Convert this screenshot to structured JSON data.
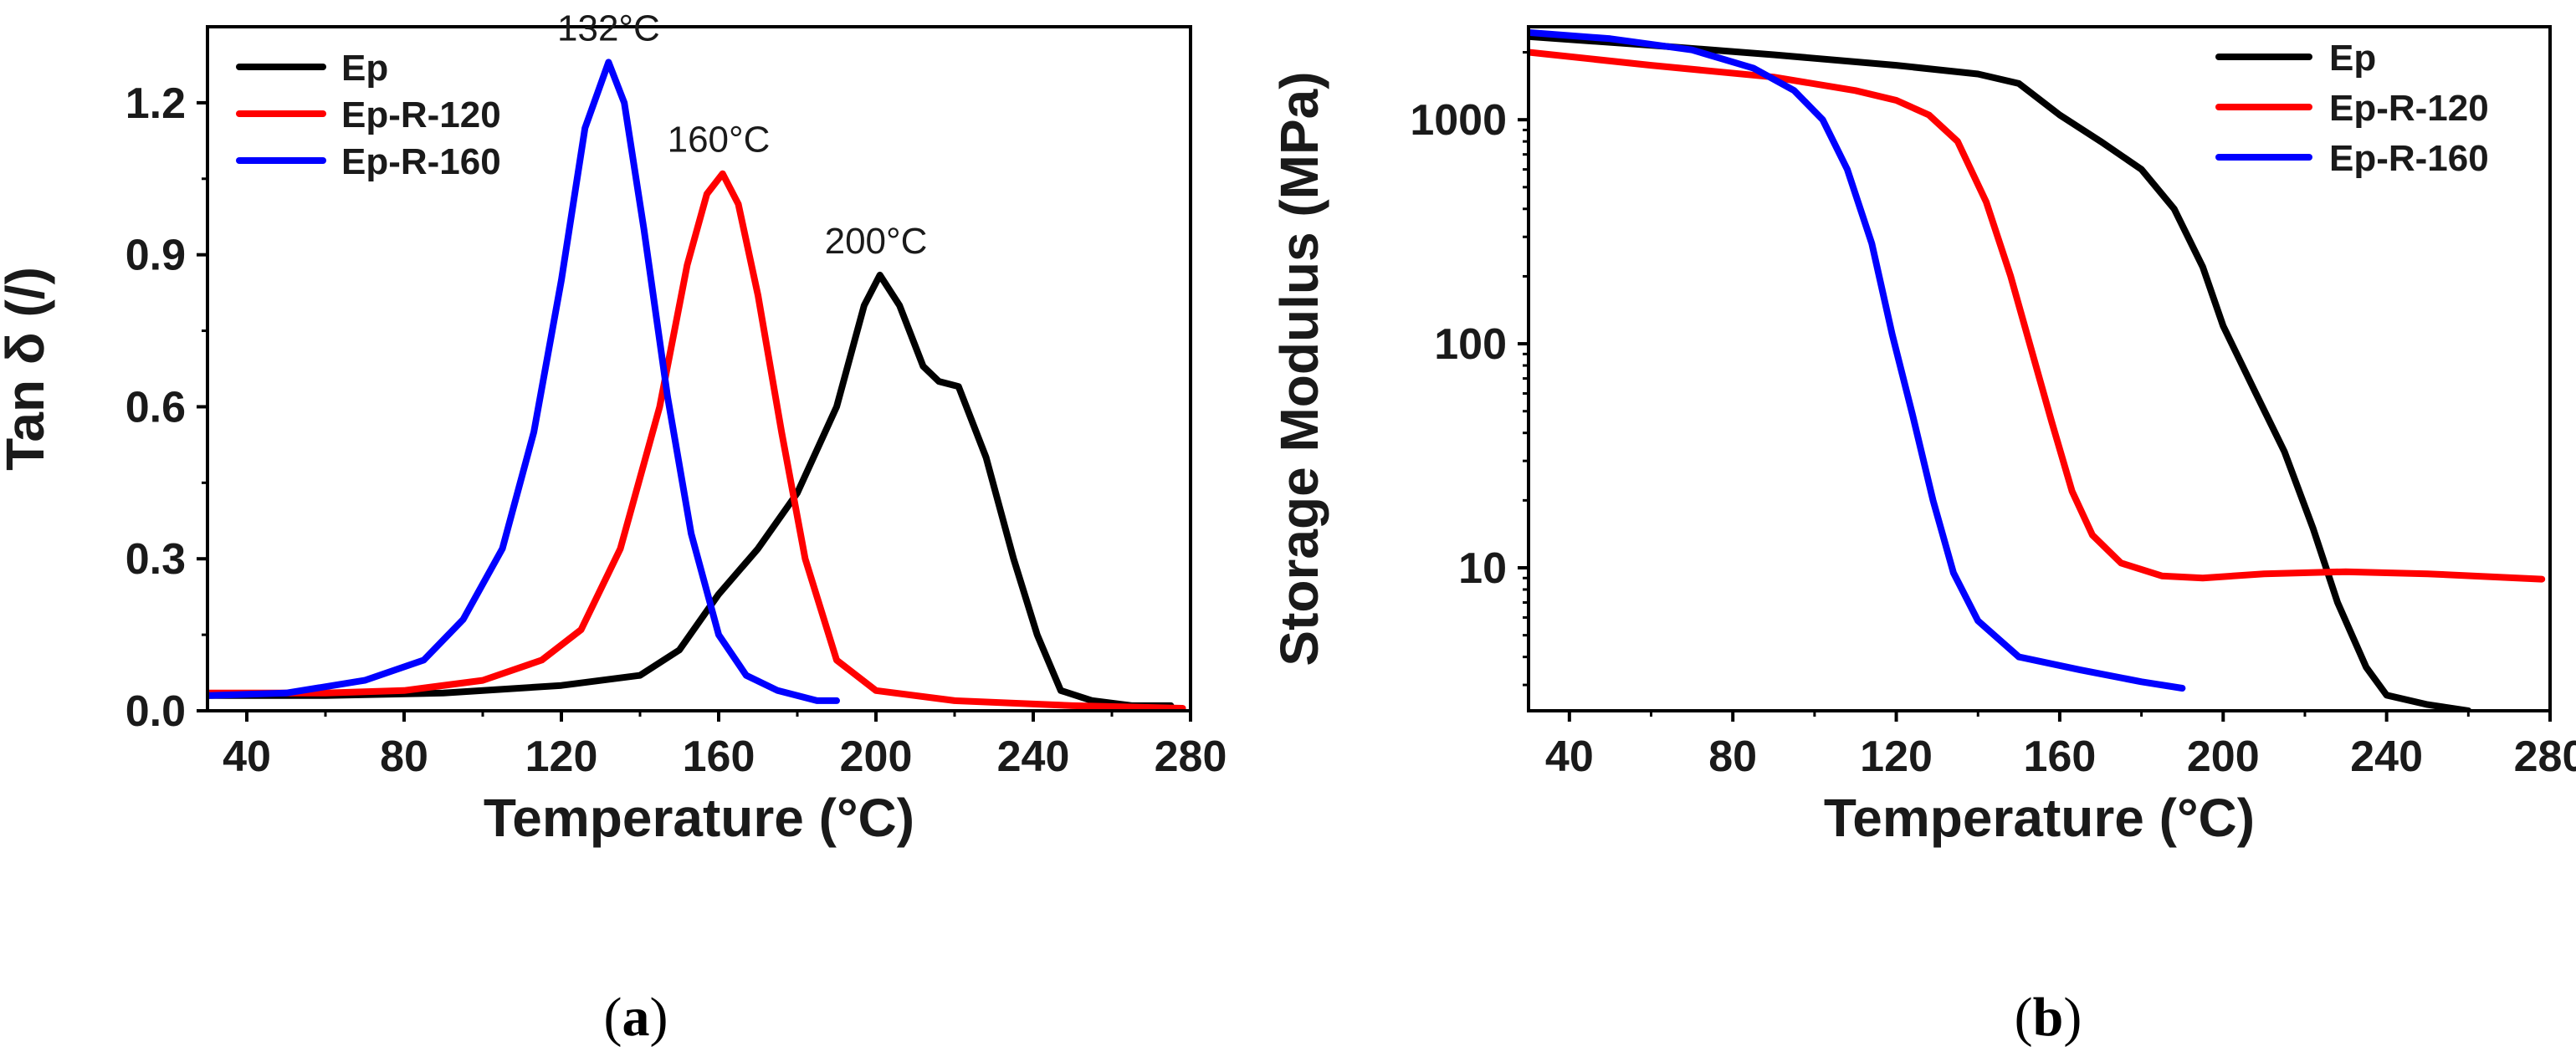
{
  "chart_data": [
    {
      "id": "a",
      "type": "line",
      "caption": "(a)",
      "xlabel": "Temperature (°C)",
      "ylabel": "Tan δ (/)",
      "xlim": [
        30,
        280
      ],
      "ylim": [
        0,
        1.35
      ],
      "xticks": [
        40,
        80,
        120,
        160,
        200,
        240,
        280
      ],
      "yticks": [
        0.0,
        0.3,
        0.6,
        0.9,
        1.2
      ],
      "ytick_labels": [
        "0.0",
        "0.3",
        "0.6",
        "0.9",
        "1.2"
      ],
      "legend": "top-left",
      "annotations": [
        {
          "text": "132°C",
          "x": 132,
          "y": 1.28
        },
        {
          "text": "160°C",
          "x": 160,
          "y": 1.06
        },
        {
          "text": "200°C",
          "x": 200,
          "y": 0.86
        }
      ],
      "series": [
        {
          "name": "Ep",
          "color": "#000000",
          "points": [
            [
              30,
              0.03
            ],
            [
              60,
              0.03
            ],
            [
              90,
              0.035
            ],
            [
              120,
              0.05
            ],
            [
              140,
              0.07
            ],
            [
              150,
              0.12
            ],
            [
              160,
              0.23
            ],
            [
              170,
              0.32
            ],
            [
              180,
              0.43
            ],
            [
              190,
              0.6
            ],
            [
              197,
              0.8
            ],
            [
              201,
              0.86
            ],
            [
              206,
              0.8
            ],
            [
              212,
              0.68
            ],
            [
              216,
              0.65
            ],
            [
              221,
              0.64
            ],
            [
              228,
              0.5
            ],
            [
              235,
              0.3
            ],
            [
              241,
              0.15
            ],
            [
              247,
              0.04
            ],
            [
              255,
              0.02
            ],
            [
              265,
              0.01
            ],
            [
              275,
              0.01
            ]
          ]
        },
        {
          "name": "Ep-R-120",
          "color": "#ff0000",
          "points": [
            [
              30,
              0.035
            ],
            [
              60,
              0.035
            ],
            [
              80,
              0.04
            ],
            [
              100,
              0.06
            ],
            [
              115,
              0.1
            ],
            [
              125,
              0.16
            ],
            [
              135,
              0.32
            ],
            [
              145,
              0.6
            ],
            [
              152,
              0.88
            ],
            [
              157,
              1.02
            ],
            [
              161,
              1.06
            ],
            [
              165,
              1.0
            ],
            [
              170,
              0.82
            ],
            [
              176,
              0.55
            ],
            [
              182,
              0.3
            ],
            [
              190,
              0.1
            ],
            [
              200,
              0.04
            ],
            [
              220,
              0.02
            ],
            [
              250,
              0.01
            ],
            [
              278,
              0.005
            ]
          ]
        },
        {
          "name": "Ep-R-160",
          "color": "#0000ff",
          "points": [
            [
              30,
              0.03
            ],
            [
              50,
              0.035
            ],
            [
              70,
              0.06
            ],
            [
              85,
              0.1
            ],
            [
              95,
              0.18
            ],
            [
              105,
              0.32
            ],
            [
              113,
              0.55
            ],
            [
              120,
              0.85
            ],
            [
              126,
              1.15
            ],
            [
              132,
              1.28
            ],
            [
              136,
              1.2
            ],
            [
              141,
              0.95
            ],
            [
              147,
              0.62
            ],
            [
              153,
              0.35
            ],
            [
              160,
              0.15
            ],
            [
              167,
              0.07
            ],
            [
              175,
              0.04
            ],
            [
              185,
              0.02
            ],
            [
              190,
              0.02
            ]
          ]
        }
      ]
    },
    {
      "id": "b",
      "type": "line",
      "caption": "(b)",
      "xlabel": "Temperature (°C)",
      "ylabel": "Storage Modulus (MPa)",
      "yscale": "log",
      "xlim": [
        30,
        280
      ],
      "ylim": [
        2.3,
        2600
      ],
      "xticks": [
        40,
        80,
        120,
        160,
        200,
        240,
        280
      ],
      "yticks": [
        10,
        100,
        1000
      ],
      "ytick_labels": [
        "10",
        "100",
        "1000"
      ],
      "legend": "top-right",
      "series": [
        {
          "name": "Ep",
          "color": "#000000",
          "points": [
            [
              30,
              2350
            ],
            [
              60,
              2150
            ],
            [
              90,
              1950
            ],
            [
              120,
              1750
            ],
            [
              140,
              1600
            ],
            [
              150,
              1450
            ],
            [
              160,
              1050
            ],
            [
              170,
              800
            ],
            [
              180,
              600
            ],
            [
              188,
              400
            ],
            [
              195,
              220
            ],
            [
              200,
              120
            ],
            [
              208,
              60
            ],
            [
              215,
              33
            ],
            [
              222,
              15
            ],
            [
              228,
              7
            ],
            [
              235,
              3.6
            ],
            [
              240,
              2.7
            ],
            [
              250,
              2.45
            ],
            [
              260,
              2.3
            ]
          ]
        },
        {
          "name": "Ep-R-120",
          "color": "#ff0000",
          "points": [
            [
              30,
              2000
            ],
            [
              60,
              1750
            ],
            [
              90,
              1550
            ],
            [
              110,
              1350
            ],
            [
              120,
              1220
            ],
            [
              128,
              1050
            ],
            [
              135,
              800
            ],
            [
              142,
              430
            ],
            [
              148,
              200
            ],
            [
              153,
              95
            ],
            [
              158,
              45
            ],
            [
              163,
              22
            ],
            [
              168,
              14
            ],
            [
              175,
              10.5
            ],
            [
              185,
              9.2
            ],
            [
              195,
              9.0
            ],
            [
              210,
              9.4
            ],
            [
              230,
              9.6
            ],
            [
              250,
              9.4
            ],
            [
              278,
              8.9
            ]
          ]
        },
        {
          "name": "Ep-R-160",
          "color": "#0000ff",
          "points": [
            [
              30,
              2450
            ],
            [
              50,
              2300
            ],
            [
              70,
              2050
            ],
            [
              85,
              1700
            ],
            [
              95,
              1350
            ],
            [
              102,
              1000
            ],
            [
              108,
              600
            ],
            [
              114,
              280
            ],
            [
              119,
              110
            ],
            [
              124,
              48
            ],
            [
              129,
              20
            ],
            [
              134,
              9.5
            ],
            [
              140,
              5.8
            ],
            [
              150,
              4.0
            ],
            [
              165,
              3.5
            ],
            [
              180,
              3.1
            ],
            [
              190,
              2.9
            ]
          ]
        }
      ]
    }
  ]
}
